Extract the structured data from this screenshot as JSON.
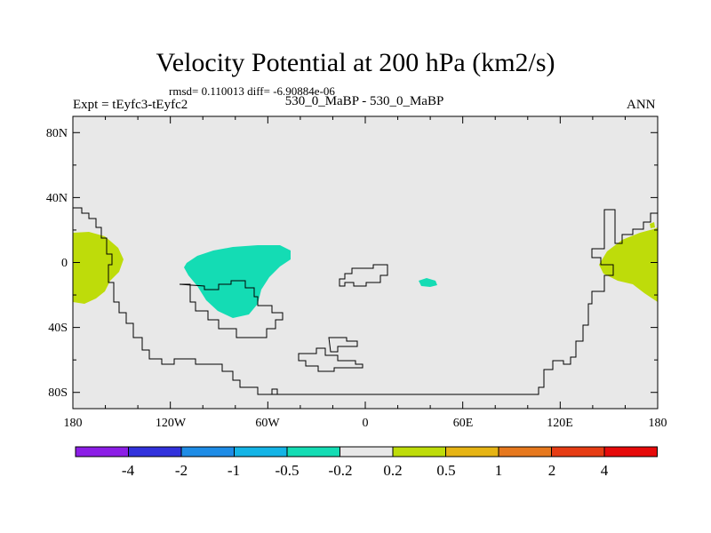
{
  "title": "Velocity Potential at 200 hPa (km2/s)",
  "stats": "rmsd= 0.110013 diff= -6.90884e-06",
  "left_label": "Expt = tEyfc3-tEyfc2",
  "center_label": "530_0_MaBP - 530_0_MaBP",
  "right_label": "ANN",
  "chart_data": {
    "type": "heatmap",
    "projection": "cylindrical-equidistant",
    "lon_range": [
      -180,
      180
    ],
    "lat_range": [
      -90,
      90
    ],
    "x_ticks": [
      "180",
      "120W",
      "60W",
      "0",
      "60E",
      "120E",
      "180"
    ],
    "y_ticks": [
      "80N",
      "40N",
      "0",
      "40S",
      "80S"
    ],
    "y_tick_values": [
      80,
      40,
      0,
      -40,
      -80
    ],
    "background_value_range": [
      -0.2,
      0.2
    ],
    "colorbar": {
      "colors": [
        "#8c1ee6",
        "#3232dc",
        "#1e8ce6",
        "#14b4e6",
        "#14dcb4",
        "#e8e8e8",
        "#bedc0a",
        "#e6b414",
        "#e6781e",
        "#e63c14",
        "#e60a0a"
      ],
      "labels": [
        "-4",
        "-2",
        "-1",
        "-0.5",
        "-0.2",
        "0.2",
        "0.5",
        "1",
        "2",
        "4"
      ]
    },
    "anomalies": [
      {
        "name": "west-pacific-positive",
        "value_range": "0.2 to 0.5",
        "lon_range": [
          -180,
          -155
        ],
        "lat_range": [
          -25,
          18
        ]
      },
      {
        "name": "east-pacific-positive",
        "value_range": "0.2 to 0.5",
        "lon_range": [
          150,
          180
        ],
        "lat_range": [
          -25,
          18
        ]
      },
      {
        "name": "south-america-negative",
        "value_range": "-0.5 to -0.2",
        "lon_range": [
          -110,
          -45
        ],
        "lat_range": [
          -35,
          10
        ]
      },
      {
        "name": "africa-negative-small",
        "value_range": "-0.5 to -0.2",
        "lon_range": [
          32,
          45
        ],
        "lat_range": [
          -15,
          -10
        ]
      }
    ]
  }
}
